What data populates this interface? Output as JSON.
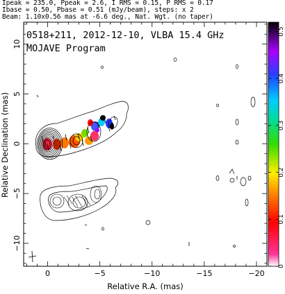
{
  "header": {
    "line1": "Ipeak = 235.0, Ppeak = 2.6, I RMS = 0.15, P RMS = 0.17",
    "line2": "Ibase = 0.50, Pbase = 0.51 (mJy/beam), steps: x 2",
    "line3": "Beam: 1.10x0.56 mas at -6.6 deg., Nat. Wgt. (no taper)"
  },
  "chart_data": {
    "type": "contour-map",
    "title": "0518+211, 2012-12-10, VLBA 15.4 GHz",
    "subtitle": "MOJAVE Program",
    "xlabel": "Relative R.A. (mas)",
    "ylabel": "Relative Declination (mas)",
    "xlim": [
      2.3,
      -21
    ],
    "ylim": [
      -12.3,
      12.2
    ],
    "x_ticks": [
      0,
      -5,
      -10,
      -15,
      -20
    ],
    "x_tick_labels": [
      "0",
      "−5",
      "−10",
      "−15",
      "−20"
    ],
    "y_ticks": [
      10,
      5,
      0,
      -5,
      -10
    ],
    "y_tick_labels": [
      "10",
      "5",
      "0",
      "−5",
      "−10"
    ],
    "colorbar": {
      "ticks": [
        0,
        0.1,
        0.2,
        0.3,
        0.4,
        0.5
      ],
      "tick_labels": [
        "0",
        "0.1",
        "0.2",
        "0.3",
        "0.4",
        "0.5"
      ],
      "range": [
        0,
        0.52
      ]
    },
    "core": {
      "x": 0,
      "y": 0,
      "levels": 9
    },
    "colors": {
      "frame": "#000000",
      "contour": "#000000",
      "vectors": "#000000"
    }
  }
}
